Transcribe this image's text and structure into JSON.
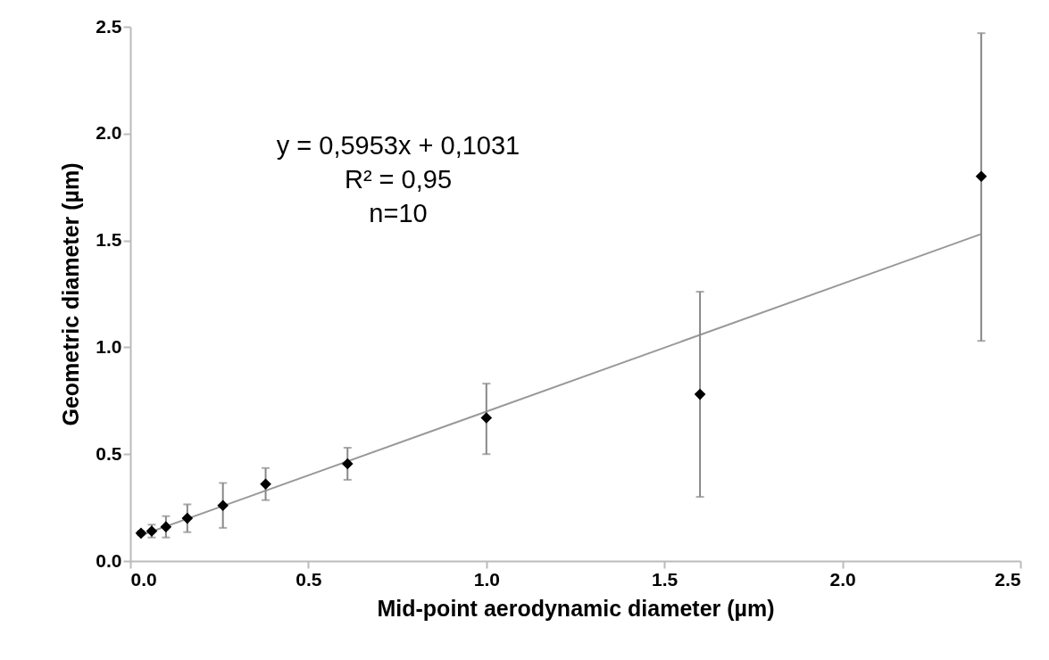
{
  "chart_data": {
    "type": "scatter",
    "xlabel": "Mid-point aerodynamic diameter (µm)",
    "ylabel": "Geometric diameter (µm)",
    "annotations": [
      "y = 0,5953x + 0,1031",
      "R² = 0,95",
      "n=10"
    ],
    "series": [
      {
        "color": "#000000",
        "marker": "diamond",
        "x": [
          0.03,
          0.06,
          0.1,
          0.16,
          0.26,
          0.38,
          0.61,
          1.0,
          1.6,
          2.39
        ],
        "values": [
          0.13,
          0.14,
          0.16,
          0.2,
          0.26,
          0.36,
          0.455,
          0.67,
          0.78,
          1.8
        ],
        "errors": [
          0.01,
          0.03,
          0.05,
          0.065,
          0.105,
          0.075,
          0.075,
          [
            0.5,
            0.83
          ],
          [
            0.3,
            1.26
          ],
          [
            1.03,
            2.47
          ]
        ]
      },
      {
        "type": "line",
        "color": "#999999",
        "x": [
          0.03,
          2.39
        ],
        "values": [
          0.12,
          1.53
        ]
      }
    ],
    "xlim": [
      0,
      2.5
    ],
    "ylim": [
      0,
      2.5
    ],
    "xticks": [
      {
        "value": 0,
        "label": "0.0"
      },
      0.5,
      {
        "value": 1,
        "label": "1.0"
      },
      1.5,
      {
        "value": 2,
        "label": "2.0"
      },
      2.5
    ],
    "yticks": [
      {
        "value": 0,
        "label": "0.0"
      },
      0.5,
      {
        "value": 1,
        "label": "1.0"
      },
      1.5,
      {
        "value": 2,
        "label": "2.0"
      },
      2.5
    ],
    "grid": false
  }
}
